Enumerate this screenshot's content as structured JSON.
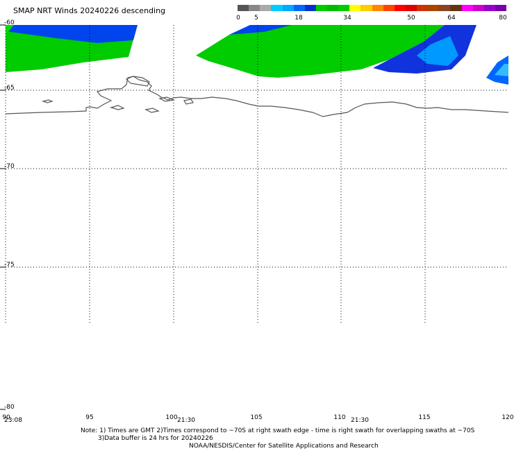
{
  "title": "SMAP NRT Winds  20240226 descending",
  "colorbar": {
    "labels": [
      "0",
      "5",
      "18",
      "34",
      "50",
      "64",
      "80"
    ],
    "colors": [
      "#555555",
      "#888888",
      "#aaaaaa",
      "#00ccff",
      "#00aaff",
      "#0066ff",
      "#0033cc",
      "#00cc00",
      "#00bb00",
      "#00cc00",
      "#ffff00",
      "#ffcc00",
      "#ff8800",
      "#ff4400",
      "#ff0000",
      "#dd0000",
      "#cc3300",
      "#aa4400",
      "#884422",
      "#663311",
      "#ff00ff",
      "#cc00cc",
      "#9900cc",
      "#7700aa"
    ]
  },
  "map": {
    "lat_labels": [
      "-60",
      "-65",
      "-70",
      "-75",
      "-80"
    ],
    "lon_labels": [
      "90",
      "95",
      "100",
      "105",
      "110",
      "115",
      "120"
    ],
    "time_labels": [
      "23:08",
      "21:30",
      "21:30"
    ]
  },
  "notes": {
    "line1": "Note: 1) Times are GMT 2)Times correspond to ~70S at right swath edge - time is right swath for overlapping swaths at ~70S",
    "line2": "3)Data buffer is 24 hrs for 20240226",
    "line3": "NOAA/NESDIS/Center for Satellite Applications and Research"
  }
}
